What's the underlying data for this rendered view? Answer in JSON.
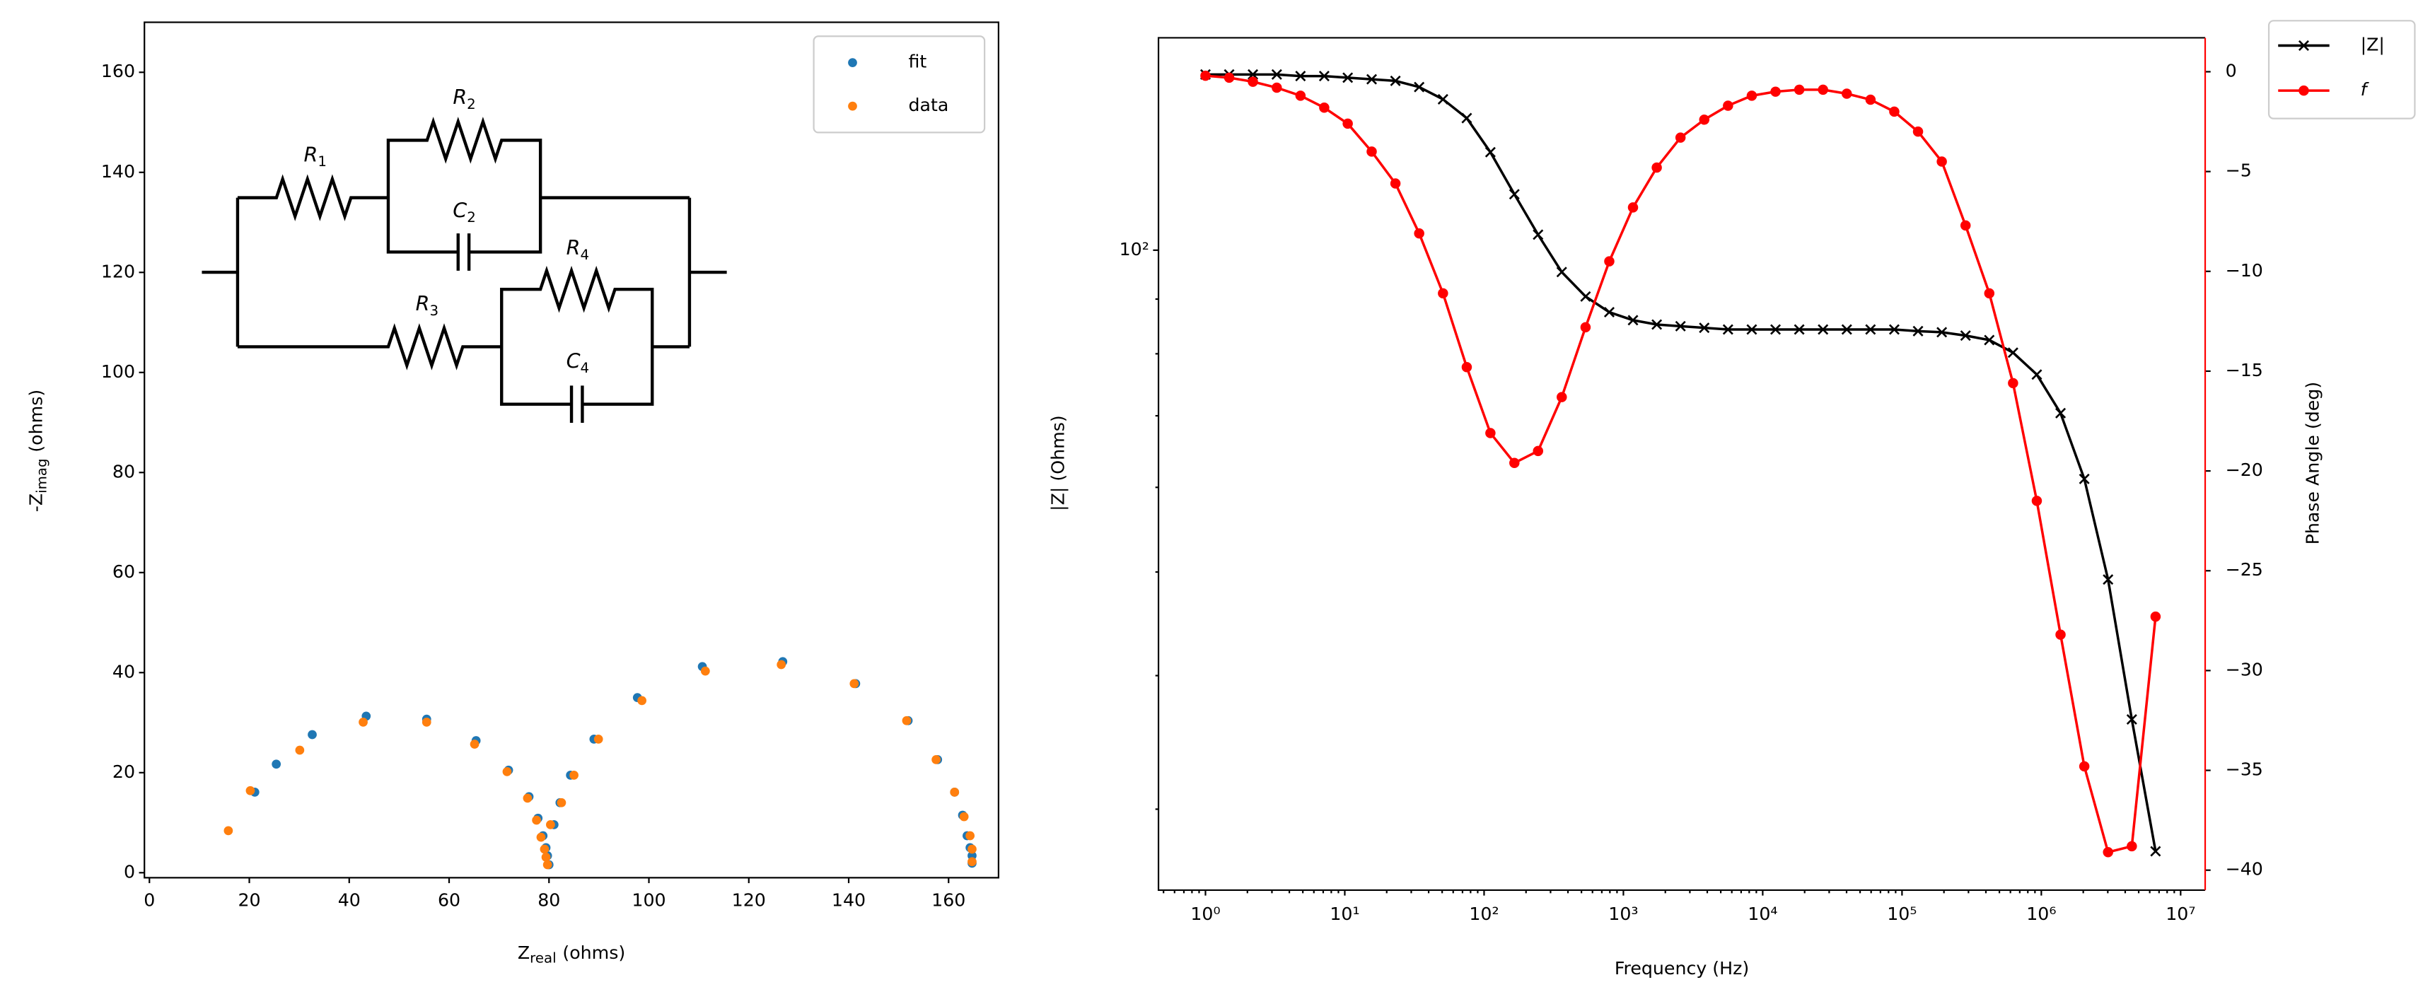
{
  "chart_data": [
    {
      "type": "scatter",
      "xlabel": {
        "text": "Z",
        "sub": "real",
        "unit": "(ohms)"
      },
      "ylabel": {
        "text": "-Z",
        "sub": "imag",
        "unit": "(ohms)"
      },
      "xlim": [
        -1,
        170
      ],
      "ylim": [
        -1,
        170
      ],
      "xticks": [
        0,
        20,
        40,
        60,
        80,
        100,
        120,
        140,
        160
      ],
      "yticks": [
        0,
        20,
        40,
        60,
        80,
        100,
        120,
        140,
        160
      ],
      "legend": "upper right",
      "series": [
        {
          "name": "fit",
          "color": "#1f77b4",
          "x": [
            21.1,
            25.4,
            32.6,
            43.4,
            55.5,
            65.4,
            71.9,
            76.0,
            77.8,
            78.8,
            79.4,
            79.7,
            80.0,
            81.0,
            82.2,
            84.3,
            89.0,
            97.7,
            110.7,
            126.8,
            141.4,
            151.9,
            157.8,
            161.2,
            162.8,
            163.7,
            164.3,
            164.7,
            164.7
          ],
          "values": [
            16.1,
            21.7,
            27.6,
            31.3,
            30.7,
            26.4,
            20.5,
            15.2,
            10.9,
            7.4,
            5.0,
            3.4,
            1.6,
            9.6,
            14.0,
            19.5,
            26.7,
            35.0,
            41.2,
            42.2,
            37.8,
            30.4,
            22.6,
            16.1,
            11.5,
            7.4,
            5.0,
            3.4,
            1.9
          ]
        },
        {
          "name": "data",
          "color": "#ff7f0e",
          "x": [
            15.8,
            20.2,
            30.1,
            42.8,
            55.5,
            65.1,
            71.6,
            75.7,
            77.5,
            78.4,
            79.1,
            79.4,
            79.7,
            80.3,
            82.5,
            85.0,
            89.9,
            98.6,
            111.3,
            126.5,
            141.1,
            151.6,
            157.5,
            161.2,
            163.1,
            164.3,
            164.7,
            164.7
          ],
          "values": [
            8.4,
            16.4,
            24.5,
            30.1,
            30.1,
            25.7,
            20.2,
            14.9,
            10.5,
            7.1,
            4.7,
            3.1,
            1.6,
            9.6,
            14.0,
            19.5,
            26.7,
            34.4,
            40.3,
            41.6,
            37.8,
            30.4,
            22.6,
            16.1,
            11.2,
            7.4,
            4.7,
            2.2
          ]
        }
      ],
      "circuit": {
        "labels": [
          {
            "letter": "R",
            "sub": "1"
          },
          {
            "letter": "R",
            "sub": "2"
          },
          {
            "letter": "C",
            "sub": "2"
          },
          {
            "letter": "R",
            "sub": "3"
          },
          {
            "letter": "R",
            "sub": "4"
          },
          {
            "letter": "C",
            "sub": "4"
          }
        ]
      }
    },
    {
      "type": "line",
      "xlabel": "Frequency (Hz)",
      "ylabel": "|Z| (Ohms)",
      "y2label": "Phase Angle (deg)",
      "xscale": "log",
      "yscale": "log",
      "minor_ticks": true,
      "x": [
        1,
        1.48,
        2.19,
        3.25,
        4.81,
        7.12,
        10.5,
        15.6,
        23.1,
        34.2,
        50.7,
        75.1,
        111,
        165,
        244,
        361,
        535,
        792,
        1172,
        1736,
        2570,
        3806,
        5636,
        8347,
        12360,
        18300,
        27100,
        40130,
        59430,
        88000,
        130300,
        193000,
        285800,
        423200,
        626600,
        928000,
        1374000,
        2035000,
        3013000,
        4463000,
        6607000
      ],
      "xlim": [
        0.46,
        15000000
      ],
      "xticks": [
        {
          "value": 1,
          "label": "10⁰"
        },
        {
          "value": 10,
          "label": "10¹"
        },
        {
          "value": 100,
          "label": "10²"
        },
        {
          "value": 1000,
          "label": "10³"
        },
        {
          "value": 10000,
          "label": "10⁴"
        },
        {
          "value": 100000,
          "label": "10⁵"
        },
        {
          "value": 1000000,
          "label": "10⁶"
        },
        {
          "value": 10000000,
          "label": "10⁷"
        }
      ],
      "ylim": [
        25.2,
        158
      ],
      "yticks": [
        {
          "value": 100,
          "label": "10²"
        }
      ],
      "y2lim": [
        -41,
        1.7
      ],
      "y2ticks": [
        0,
        {
          "value": -5,
          "label": "−5"
        },
        {
          "value": -10,
          "label": "−10"
        },
        {
          "value": -15,
          "label": "−15"
        },
        {
          "value": -20,
          "label": "−20"
        },
        {
          "value": -25,
          "label": "−25"
        },
        {
          "value": -30,
          "label": "−30"
        },
        {
          "value": -35,
          "label": "−35"
        },
        {
          "value": -40,
          "label": "−40"
        }
      ],
      "y2color": "#ff0000",
      "legend": "outside upper right",
      "series": [
        {
          "name": "|Z|",
          "color": "#000000",
          "marker": "x",
          "values": [
            146,
            146,
            146,
            146,
            145.5,
            145.5,
            145,
            144.5,
            144,
            142.1,
            138.4,
            132.9,
            123.5,
            112.8,
            103.4,
            95.4,
            90.5,
            87.5,
            86.0,
            85.2,
            84.9,
            84.6,
            84.3,
            84.3,
            84.3,
            84.3,
            84.3,
            84.3,
            84.3,
            84.3,
            84.0,
            83.8,
            83.2,
            82.4,
            80.2,
            76.5,
            70.4,
            61.1,
            49.2,
            36.4,
            27.4
          ]
        },
        {
          "name": "f",
          "color": "#ff0000",
          "marker": "o",
          "axis": "y2",
          "font_style": "italic",
          "values": [
            -0.2,
            -0.3,
            -0.5,
            -0.8,
            -1.2,
            -1.8,
            -2.6,
            -4.0,
            -5.6,
            -8.1,
            -11.1,
            -14.8,
            -18.1,
            -19.6,
            -19.0,
            -16.3,
            -12.8,
            -9.5,
            -6.8,
            -4.8,
            -3.3,
            -2.4,
            -1.7,
            -1.2,
            -1.0,
            -0.9,
            -0.9,
            -1.1,
            -1.4,
            -2.0,
            -3.0,
            -4.5,
            -7.7,
            -11.1,
            -15.6,
            -21.5,
            -28.2,
            -34.8,
            -39.1,
            -38.8,
            -27.3
          ]
        }
      ]
    }
  ]
}
